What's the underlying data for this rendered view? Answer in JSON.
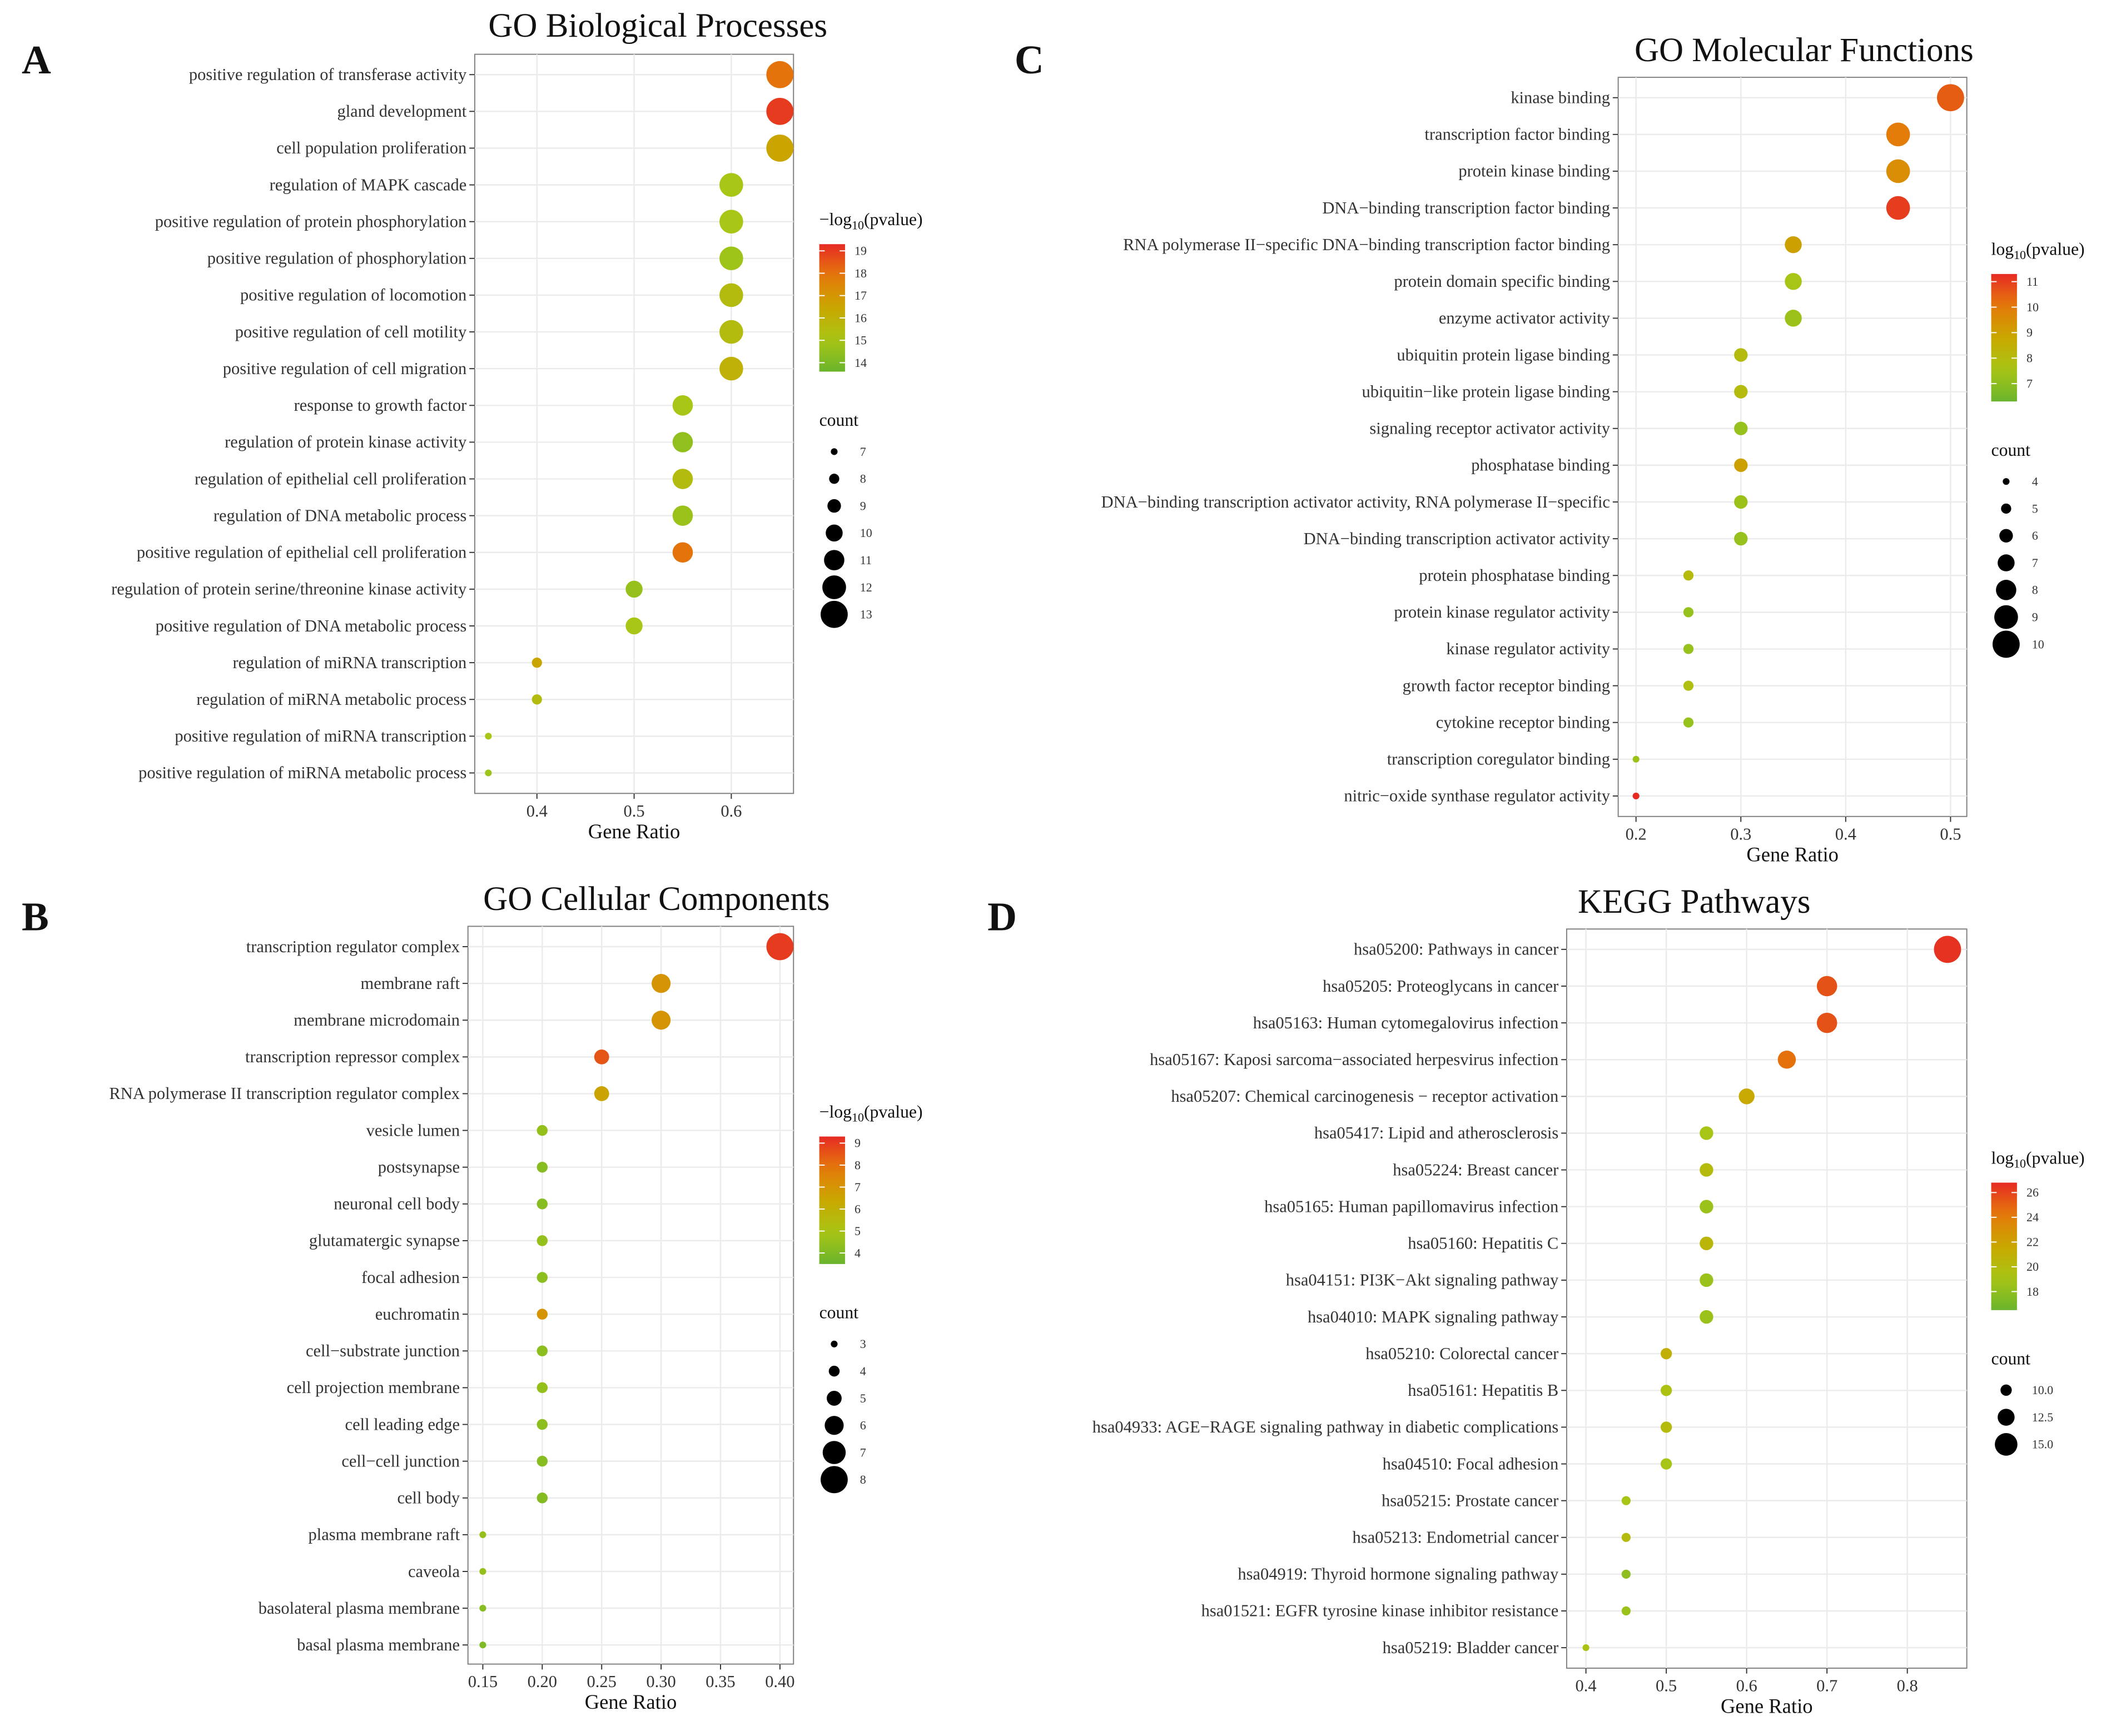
{
  "chart_data": [
    {
      "panel": "A",
      "type": "scatter",
      "title": "GO Biological Processes",
      "xlabel": "Gene Ratio",
      "xlim": [
        0.336,
        0.664
      ],
      "xticks": [
        0.4,
        0.5,
        0.6
      ],
      "xtick_labels": [
        "0.4",
        "0.5",
        "0.6"
      ],
      "color_legend_title": "−log10(pvalue)",
      "color_range": [
        13.6,
        19.3
      ],
      "color_ticks": [
        19,
        18,
        17,
        16,
        15,
        14
      ],
      "size_legend_title": "count",
      "size_ticks": [
        7,
        8,
        9,
        10,
        11,
        12,
        13
      ],
      "terms": [
        "positive regulation of transferase activity",
        "gland development",
        "cell population proliferation",
        "regulation of MAPK cascade",
        "positive regulation of protein phosphorylation",
        "positive regulation of phosphorylation",
        "positive regulation of locomotion",
        "positive regulation of cell motility",
        "positive regulation of cell migration",
        "response to growth factor",
        "regulation of protein kinase activity",
        "regulation of epithelial cell proliferation",
        "regulation of DNA metabolic process",
        "positive regulation of epithelial cell proliferation",
        "regulation of protein serine/threonine kinase activity",
        "positive regulation of DNA metabolic process",
        "regulation of miRNA transcription",
        "regulation of miRNA metabolic process",
        "positive regulation of miRNA transcription",
        "positive regulation of miRNA metabolic process"
      ],
      "gene_ratio": [
        0.65,
        0.65,
        0.65,
        0.6,
        0.6,
        0.6,
        0.6,
        0.6,
        0.6,
        0.55,
        0.55,
        0.55,
        0.55,
        0.55,
        0.5,
        0.5,
        0.4,
        0.4,
        0.35,
        0.35
      ],
      "count": [
        13,
        13,
        13,
        12,
        12,
        12,
        12,
        12,
        12,
        11,
        11,
        11,
        11,
        11,
        10,
        10,
        8,
        8,
        7,
        7
      ],
      "pvalue_score": [
        18,
        19,
        16.5,
        15,
        15,
        14.8,
        15.5,
        15.5,
        16,
        15,
        14.5,
        15.5,
        14.7,
        18,
        14.6,
        15,
        16.5,
        15.5,
        15,
        14.8
      ]
    },
    {
      "panel": "B",
      "type": "scatter",
      "title": "GO Cellular Components",
      "xlabel": "Gene Ratio",
      "xlim": [
        0.1375,
        0.4114
      ],
      "xticks": [
        0.15,
        0.2,
        0.25,
        0.3,
        0.35,
        0.4
      ],
      "xtick_labels": [
        "0.15",
        "0.20",
        "0.25",
        "0.30",
        "0.35",
        "0.40"
      ],
      "color_legend_title": "−log10(pvalue)",
      "color_range": [
        3.5,
        9.3
      ],
      "color_ticks": [
        9,
        8,
        7,
        6,
        5,
        4
      ],
      "size_legend_title": "count",
      "size_ticks": [
        3,
        4,
        5,
        6,
        7,
        8
      ],
      "terms": [
        "transcription regulator complex",
        "membrane raft",
        "membrane microdomain",
        "transcription repressor complex",
        "RNA polymerase II transcription regulator complex",
        "vesicle lumen",
        "postsynapse",
        "neuronal cell body",
        "glutamatergic synapse",
        "focal adhesion",
        "euchromatin",
        "cell−substrate junction",
        "cell projection membrane",
        "cell leading edge",
        "cell−cell junction",
        "cell body",
        "plasma membrane raft",
        "caveola",
        "basolateral plasma membrane",
        "basal plasma membrane"
      ],
      "gene_ratio": [
        0.4,
        0.3,
        0.3,
        0.25,
        0.25,
        0.2,
        0.2,
        0.2,
        0.2,
        0.2,
        0.2,
        0.2,
        0.2,
        0.2,
        0.2,
        0.2,
        0.15,
        0.15,
        0.15,
        0.15
      ],
      "count": [
        8,
        6,
        6,
        5,
        5,
        4,
        4,
        4,
        4,
        4,
        4,
        4,
        4,
        4,
        4,
        4,
        3,
        3,
        3,
        3
      ],
      "pvalue_score": [
        9,
        7,
        7,
        8.5,
        6.5,
        4.5,
        4.2,
        4.2,
        4.5,
        4.3,
        7,
        4.3,
        4.5,
        4.3,
        4.2,
        4.1,
        4.5,
        4.5,
        4.2,
        4.0
      ]
    },
    {
      "panel": "C",
      "type": "scatter",
      "title": "GO Molecular Functions",
      "xlabel": "Gene Ratio",
      "xlim": [
        0.183,
        0.5155
      ],
      "xticks": [
        0.2,
        0.3,
        0.4,
        0.5
      ],
      "xtick_labels": [
        "0.2",
        "0.3",
        "0.4",
        "0.5"
      ],
      "color_legend_title": "log10(pvalue)",
      "color_range": [
        6.3,
        11.3
      ],
      "color_ticks": [
        11,
        10,
        9,
        8,
        7
      ],
      "size_legend_title": "count",
      "size_ticks": [
        4,
        5,
        6,
        7,
        8,
        9,
        10
      ],
      "terms": [
        "kinase binding",
        "transcription factor binding",
        "protein kinase binding",
        "DNA−binding transcription factor binding",
        "RNA polymerase II−specific DNA−binding transcription factor binding",
        "protein domain specific binding",
        "enzyme activator activity",
        "ubiquitin protein ligase binding",
        "ubiquitin−like protein ligase binding",
        "signaling receptor activator activity",
        "phosphatase binding",
        "DNA−binding transcription activator activity, RNA polymerase II−specific",
        "DNA−binding transcription activator activity",
        "protein phosphatase binding",
        "protein kinase regulator activity",
        "kinase regulator activity",
        "growth factor receptor binding",
        "cytokine receptor binding",
        "transcription coregulator binding",
        "nitric−oxide synthase regulator activity"
      ],
      "gene_ratio": [
        0.5,
        0.45,
        0.45,
        0.45,
        0.35,
        0.35,
        0.35,
        0.3,
        0.3,
        0.3,
        0.3,
        0.3,
        0.3,
        0.25,
        0.25,
        0.25,
        0.25,
        0.25,
        0.2,
        0.2
      ],
      "count": [
        10,
        9,
        9,
        9,
        7,
        7,
        7,
        6,
        6,
        6,
        6,
        6,
        6,
        5,
        5,
        5,
        5,
        5,
        4,
        4
      ],
      "pvalue_score": [
        10.5,
        10,
        9.5,
        11,
        9,
        7.5,
        7.3,
        8,
        8,
        7.2,
        9,
        7.3,
        7.2,
        8,
        7.2,
        7.2,
        7.8,
        7.2,
        7.3,
        11.3
      ]
    },
    {
      "panel": "D",
      "type": "scatter",
      "title": "KEGG Pathways",
      "xlabel": "Gene Ratio",
      "xlim": [
        0.376,
        0.874
      ],
      "xticks": [
        0.4,
        0.5,
        0.6,
        0.7,
        0.8
      ],
      "xtick_labels": [
        "0.4",
        "0.5",
        "0.6",
        "0.7",
        "0.8"
      ],
      "color_legend_title": "log10(pvalue)",
      "color_range": [
        16.5,
        26.8
      ],
      "color_ticks": [
        26,
        24,
        22,
        20,
        18
      ],
      "size_legend_title": "count",
      "size_ticks": [
        10,
        12.5,
        15
      ],
      "size_tick_labels": [
        "10.0",
        "12.5",
        "15.0"
      ],
      "terms": [
        "hsa05200: Pathways in cancer",
        "hsa05205: Proteoglycans in cancer",
        "hsa05163: Human cytomegalovirus infection",
        "hsa05167: Kaposi sarcoma−associated herpesvirus infection",
        "hsa05207: Chemical carcinogenesis − receptor activation",
        "hsa05417: Lipid and atherosclerosis",
        "hsa05224: Breast cancer",
        "hsa05165: Human papillomavirus infection",
        "hsa05160: Hepatitis C",
        "hsa04151: PI3K−Akt signaling pathway",
        "hsa04010: MAPK signaling pathway",
        "hsa05210: Colorectal cancer",
        "hsa05161: Hepatitis B",
        "hsa04933: AGE−RAGE signaling pathway in diabetic complications",
        "hsa04510: Focal adhesion",
        "hsa05215: Prostate cancer",
        "hsa05213: Endometrial cancer",
        "hsa04919: Thyroid hormone signaling pathway",
        "hsa01521: EGFR tyrosine kinase inhibitor resistance",
        "hsa05219: Bladder cancer"
      ],
      "gene_ratio": [
        0.85,
        0.7,
        0.7,
        0.65,
        0.6,
        0.55,
        0.55,
        0.55,
        0.55,
        0.55,
        0.55,
        0.5,
        0.5,
        0.5,
        0.5,
        0.45,
        0.45,
        0.45,
        0.45,
        0.4
      ],
      "count": [
        17,
        14,
        14,
        13,
        12,
        11,
        11,
        11,
        11,
        11,
        11,
        10,
        10,
        10,
        10,
        9,
        9,
        9,
        9,
        8
      ],
      "pvalue_score": [
        26.5,
        25.5,
        25.5,
        24.5,
        21.5,
        19,
        20,
        18.5,
        20.5,
        18.5,
        18.5,
        21,
        19.5,
        20,
        19,
        19,
        20,
        18,
        18.5,
        19.5
      ]
    }
  ],
  "colors": {
    "low": "#6ab42d",
    "mid_low": "#a8c615",
    "mid": "#c9a700",
    "mid_high": "#e57a0a",
    "high": "#e62a24"
  }
}
